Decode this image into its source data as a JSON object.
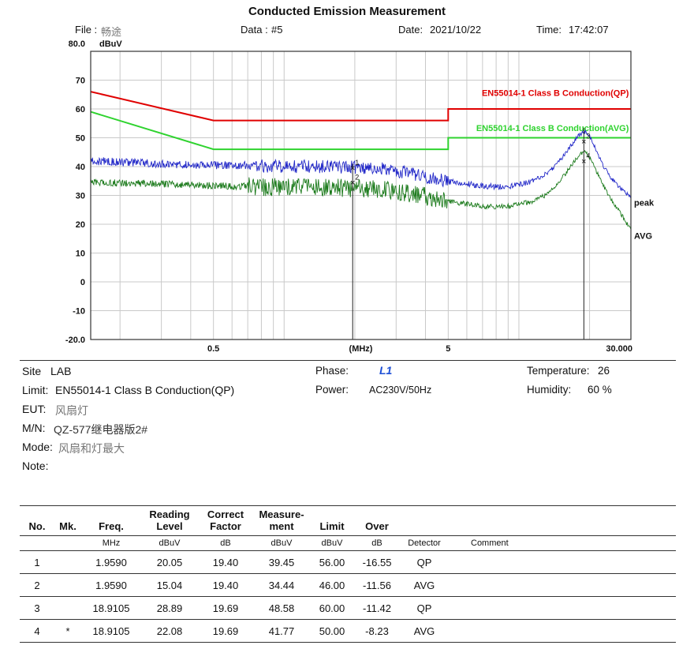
{
  "title": "Conducted Emission Measurement",
  "header": {
    "file_label": "File :",
    "file_value": "畅途",
    "data_label": "Data :",
    "data_value": "#5",
    "date_label": "Date:",
    "date_value": "2021/10/22",
    "time_label": "Time:",
    "time_value": "17:42:07"
  },
  "chart_data": {
    "type": "line",
    "x_axis": {
      "label": "(MHz)",
      "scale": "log",
      "min": 0.15,
      "max": 30,
      "tick_values": [
        0.5,
        5,
        30
      ],
      "tick_labels": [
        "0.5",
        "5",
        "30.000"
      ]
    },
    "y_axis": {
      "label": "dBuV",
      "min": -20,
      "max": 80,
      "ticks": [
        80,
        70,
        60,
        50,
        40,
        30,
        20,
        10,
        0,
        -10,
        -20
      ],
      "tick_labels": [
        "80.0",
        "70",
        "60",
        "50",
        "40",
        "30",
        "20",
        "10",
        "0",
        "-10",
        "-20.0"
      ]
    },
    "limits": [
      {
        "name": "EN55014-1 Class B Conduction(QP)",
        "color": "#e00000",
        "label_y": 64.5,
        "points": [
          [
            0.15,
            66
          ],
          [
            0.5,
            56
          ],
          [
            5,
            56
          ],
          [
            5,
            60
          ],
          [
            30,
            60
          ]
        ]
      },
      {
        "name": "EN55014-1 Class B Conduction(AVG)",
        "color": "#2fd32f",
        "label_y": 52.3,
        "points": [
          [
            0.15,
            59
          ],
          [
            0.5,
            46
          ],
          [
            5,
            46
          ],
          [
            5,
            50
          ],
          [
            30,
            50
          ]
        ]
      }
    ],
    "traces": [
      {
        "name": "peak",
        "color": "#2228c8",
        "label_y": 26.5,
        "anchors": [
          [
            0.15,
            42
          ],
          [
            0.25,
            41.2
          ],
          [
            0.4,
            40.6
          ],
          [
            0.7,
            40.4
          ],
          [
            1.0,
            40.0
          ],
          [
            1.5,
            40.0
          ],
          [
            2.0,
            39.8
          ],
          [
            2.5,
            39.4
          ],
          [
            3.0,
            38.6
          ],
          [
            4.0,
            36.6
          ],
          [
            5.0,
            34.8
          ],
          [
            6.0,
            34.0
          ],
          [
            7.0,
            33.3
          ],
          [
            8.0,
            33.0
          ],
          [
            9.0,
            33.2
          ],
          [
            10.0,
            33.8
          ],
          [
            11.0,
            34.5
          ],
          [
            12.0,
            35.6
          ],
          [
            13.0,
            37.2
          ],
          [
            14.0,
            39.6
          ],
          [
            15.0,
            42.2
          ],
          [
            16.0,
            45.2
          ],
          [
            17.0,
            48.2
          ],
          [
            18.0,
            50.8
          ],
          [
            18.9,
            52.2
          ],
          [
            19.6,
            51.4
          ],
          [
            20.5,
            49.0
          ],
          [
            21.5,
            45.0
          ],
          [
            23.0,
            40.0
          ],
          [
            25.0,
            35.5
          ],
          [
            27.0,
            32.5
          ],
          [
            30.0,
            29.5
          ]
        ],
        "noise": [
          [
            0.15,
            0.75,
            1.4
          ],
          [
            0.75,
            5.0,
            2.3
          ],
          [
            5.0,
            13.0,
            1.0
          ],
          [
            13.0,
            30.0,
            0.7
          ]
        ]
      },
      {
        "name": "AVG",
        "color": "#1b7a1b",
        "label_y": 15.0,
        "anchors": [
          [
            0.15,
            34.5
          ],
          [
            0.3,
            34.0
          ],
          [
            0.5,
            33.4
          ],
          [
            0.8,
            33.0
          ],
          [
            1.5,
            32.8
          ],
          [
            2.0,
            32.5
          ],
          [
            3.0,
            31.6
          ],
          [
            4.0,
            29.6
          ],
          [
            5.0,
            28.0
          ],
          [
            6.0,
            27.0
          ],
          [
            7.0,
            26.3
          ],
          [
            8.0,
            26.0
          ],
          [
            9.0,
            26.2
          ],
          [
            10.0,
            26.8
          ],
          [
            11.0,
            27.6
          ],
          [
            12.0,
            28.6
          ],
          [
            13.0,
            30.2
          ],
          [
            14.0,
            32.6
          ],
          [
            15.0,
            35.2
          ],
          [
            16.0,
            38.2
          ],
          [
            17.0,
            41.2
          ],
          [
            18.0,
            43.8
          ],
          [
            18.9,
            45.2
          ],
          [
            19.6,
            44.4
          ],
          [
            20.5,
            42.0
          ],
          [
            21.5,
            38.0
          ],
          [
            23.0,
            33.0
          ],
          [
            25.0,
            28.0
          ],
          [
            27.0,
            24.0
          ],
          [
            30.0,
            18.0
          ]
        ],
        "noise": [
          [
            0.15,
            0.7,
            1.2
          ],
          [
            0.7,
            5.0,
            3.2
          ],
          [
            5.0,
            13.0,
            0.9
          ],
          [
            13.0,
            30.0,
            0.7
          ]
        ]
      }
    ],
    "markers": [
      {
        "nos": [
          "1",
          "2"
        ],
        "freq": 1.959,
        "values": [
          39.45,
          34.44
        ],
        "top": 41.0
      },
      {
        "nos": [
          "3",
          "4"
        ],
        "freq": 18.9105,
        "values": [
          48.58,
          41.77
        ],
        "top": 53.5
      }
    ]
  },
  "info": {
    "site_label": "Site",
    "site_value": "LAB",
    "phase_label": "Phase:",
    "phase_value": "L1",
    "temp_label": "Temperature:",
    "temp_value": "26",
    "limit_label": "Limit:",
    "limit_value": "EN55014-1 Class B Conduction(QP)",
    "power_label": "Power:",
    "power_value": "AC230V/50Hz",
    "humidity_label": "Humidity:",
    "humidity_value": "60 %",
    "eut_label": "EUT:",
    "eut_value": "风扇灯",
    "mn_label": "M/N:",
    "mn_value": "QZ-577继电器版2#",
    "mode_label": "Mode:",
    "mode_value": "风扇和灯最大",
    "note_label": "Note:"
  },
  "table": {
    "headers": [
      "No.",
      "Mk.",
      "Freq.",
      "Reading\nLevel",
      "Correct\nFactor",
      "Measure-\nment",
      "Limit",
      "Over",
      "",
      ""
    ],
    "units": [
      "",
      "",
      "MHz",
      "dBuV",
      "dB",
      "dBuV",
      "dBuV",
      "dB",
      "Detector",
      "Comment"
    ],
    "rows": [
      [
        "1",
        "",
        "1.9590",
        "20.05",
        "19.40",
        "39.45",
        "56.00",
        "-16.55",
        "QP",
        ""
      ],
      [
        "2",
        "",
        "1.9590",
        "15.04",
        "19.40",
        "34.44",
        "46.00",
        "-11.56",
        "AVG",
        ""
      ],
      [
        "3",
        "",
        "18.9105",
        "28.89",
        "19.69",
        "48.58",
        "60.00",
        "-11.42",
        "QP",
        ""
      ],
      [
        "4",
        "*",
        "18.9105",
        "22.08",
        "19.69",
        "41.77",
        "50.00",
        "-8.23",
        "AVG",
        ""
      ]
    ]
  }
}
